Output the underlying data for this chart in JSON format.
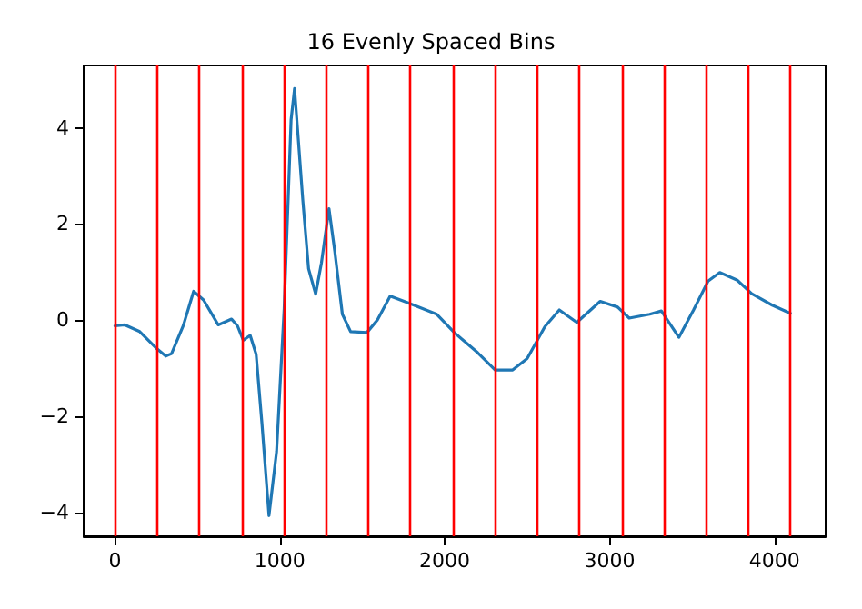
{
  "chart_data": {
    "type": "line",
    "title": "16 Evenly Spaced Bins",
    "x": [
      0,
      60,
      150,
      255,
      308,
      343,
      414,
      477,
      537,
      626,
      707,
      743,
      778,
      820,
      856,
      891,
      934,
      980,
      1026,
      1068,
      1089,
      1139,
      1174,
      1217,
      1252,
      1298,
      1333,
      1379,
      1429,
      1528,
      1591,
      1669,
      1775,
      1952,
      2058,
      2200,
      2306,
      2412,
      2500,
      2607,
      2695,
      2801,
      2943,
      3049,
      3119,
      3243,
      3314,
      3420,
      3509,
      3597,
      3668,
      3774,
      3862,
      3986,
      4096
    ],
    "series": [
      {
        "color": "#1f77b4",
        "values": [
          -0.12,
          -0.1,
          -0.24,
          -0.6,
          -0.75,
          -0.7,
          -0.12,
          0.6,
          0.42,
          -0.1,
          0.02,
          -0.12,
          -0.42,
          -0.32,
          -0.71,
          -2.14,
          -4.07,
          -2.74,
          0.24,
          4.17,
          4.82,
          2.5,
          1.07,
          0.54,
          1.19,
          2.32,
          1.43,
          0.12,
          -0.24,
          -0.26,
          0,
          0.5,
          0.36,
          0.12,
          -0.26,
          -0.68,
          -1.04,
          -1.04,
          -0.8,
          -0.14,
          0.21,
          -0.05,
          0.39,
          0.27,
          0.04,
          0.12,
          0.19,
          -0.36,
          0.21,
          0.81,
          0.99,
          0.83,
          0.55,
          0.31,
          0.14
        ]
      }
    ],
    "xlim": [
      -190,
      4310
    ],
    "ylim": [
      -4.5,
      5.3
    ],
    "xticks": [
      0,
      1000,
      2000,
      3000,
      4000
    ],
    "yticks": [
      -4,
      -2,
      0,
      2,
      4
    ],
    "ref_lines": [
      {
        "axis": "x",
        "value": 0,
        "color": "#ff0000"
      },
      {
        "axis": "x",
        "value": 256,
        "color": "#ff0000"
      },
      {
        "axis": "x",
        "value": 512,
        "color": "#ff0000"
      },
      {
        "axis": "x",
        "value": 768,
        "color": "#ff0000"
      },
      {
        "axis": "x",
        "value": 1024,
        "color": "#ff0000"
      },
      {
        "axis": "x",
        "value": 1280,
        "color": "#ff0000"
      },
      {
        "axis": "x",
        "value": 1536,
        "color": "#ff0000"
      },
      {
        "axis": "x",
        "value": 1792,
        "color": "#ff0000"
      },
      {
        "axis": "x",
        "value": 2048,
        "color": "#ff0000"
      },
      {
        "axis": "x",
        "value": 2304,
        "color": "#ff0000"
      },
      {
        "axis": "x",
        "value": 2560,
        "color": "#ff0000"
      },
      {
        "axis": "x",
        "value": 2816,
        "color": "#ff0000"
      },
      {
        "axis": "x",
        "value": 3072,
        "color": "#ff0000"
      },
      {
        "axis": "x",
        "value": 3328,
        "color": "#ff0000"
      },
      {
        "axis": "x",
        "value": 3584,
        "color": "#ff0000"
      },
      {
        "axis": "x",
        "value": 3840,
        "color": "#ff0000"
      },
      {
        "axis": "x",
        "value": 4096,
        "color": "#ff0000"
      }
    ]
  }
}
